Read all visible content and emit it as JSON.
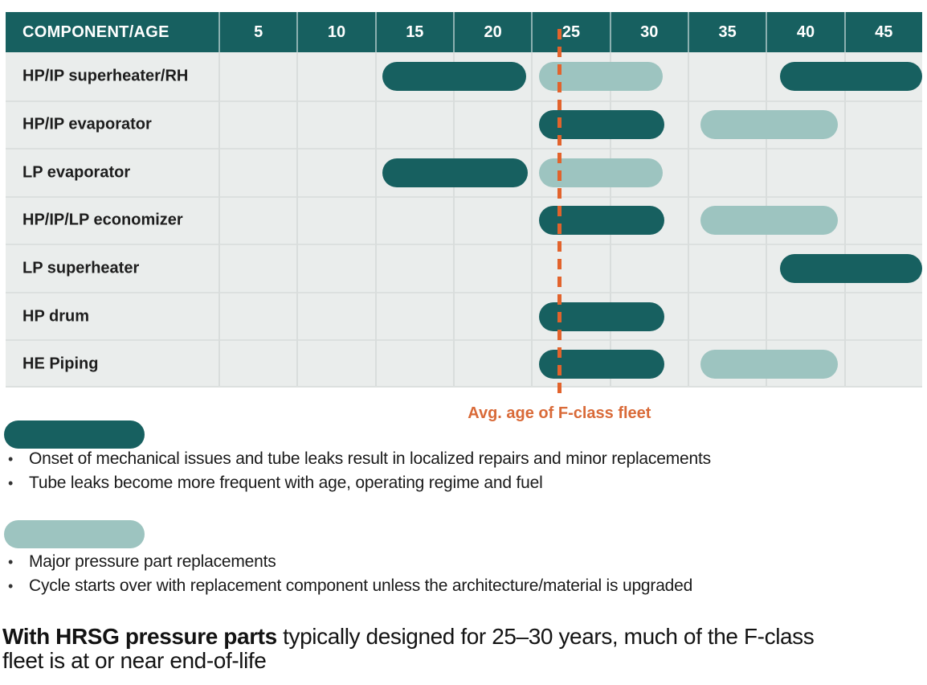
{
  "colors": {
    "teal_dark": "#176060",
    "teal_light": "#9DC4C0",
    "body_bg": "#EAEDEC",
    "gridline": "#D9DDDC",
    "orange": "#E2632C",
    "orange_text": "#D96A38"
  },
  "chart_data": {
    "type": "gantt",
    "x_axis": {
      "label": "COMPONENT/AGE",
      "ticks": [
        "5",
        "10",
        "15",
        "20",
        "25",
        "30",
        "35",
        "40",
        "45"
      ],
      "range": [
        0,
        45
      ],
      "units": "years"
    },
    "rows": [
      {
        "component": "HP/IP superheater/RH",
        "bars": [
          {
            "style": "dark",
            "start": 10.5,
            "end": 19.7
          },
          {
            "style": "light",
            "start": 20.5,
            "end": 28.4
          },
          {
            "style": "dark",
            "start": 35.9,
            "end": 45
          }
        ]
      },
      {
        "component": "HP/IP evaporator",
        "bars": [
          {
            "style": "dark",
            "start": 20.5,
            "end": 28.5
          },
          {
            "style": "light",
            "start": 30.8,
            "end": 39.6
          }
        ]
      },
      {
        "component": "LP evaporator",
        "bars": [
          {
            "style": "dark",
            "start": 10.5,
            "end": 19.8
          },
          {
            "style": "light",
            "start": 20.5,
            "end": 28.4
          }
        ]
      },
      {
        "component": "HP/IP/LP economizer",
        "bars": [
          {
            "style": "dark",
            "start": 20.5,
            "end": 28.5
          },
          {
            "style": "light",
            "start": 30.8,
            "end": 39.6
          }
        ]
      },
      {
        "component": "LP superheater",
        "bars": [
          {
            "style": "dark",
            "start": 35.9,
            "end": 45
          }
        ]
      },
      {
        "component": "HP drum",
        "bars": [
          {
            "style": "dark",
            "start": 20.5,
            "end": 28.5
          }
        ]
      },
      {
        "component": "HE Piping",
        "bars": [
          {
            "style": "dark",
            "start": 20.5,
            "end": 28.5
          },
          {
            "style": "light",
            "start": 30.8,
            "end": 39.6
          }
        ]
      }
    ],
    "marker": {
      "age": 21.8,
      "label": "Avg. age of F-class fleet"
    },
    "legend_position": "below",
    "grid": true
  },
  "legend": [
    {
      "style": "dark",
      "bullets": [
        "Onset of mechanical issues and tube leaks result in localized repairs and minor replacements",
        "Tube leaks become more frequent with age, operating regime and fuel"
      ]
    },
    {
      "style": "light",
      "bullets": [
        "Major pressure part replacements",
        "Cycle starts over with replacement component unless the architecture/material is upgraded"
      ]
    }
  ],
  "statement": {
    "bold": "With HRSG pressure parts",
    "rest_line1": " typically designed for 25–30 years, much of the F-class",
    "line2": "fleet is at or near end-of-life"
  }
}
